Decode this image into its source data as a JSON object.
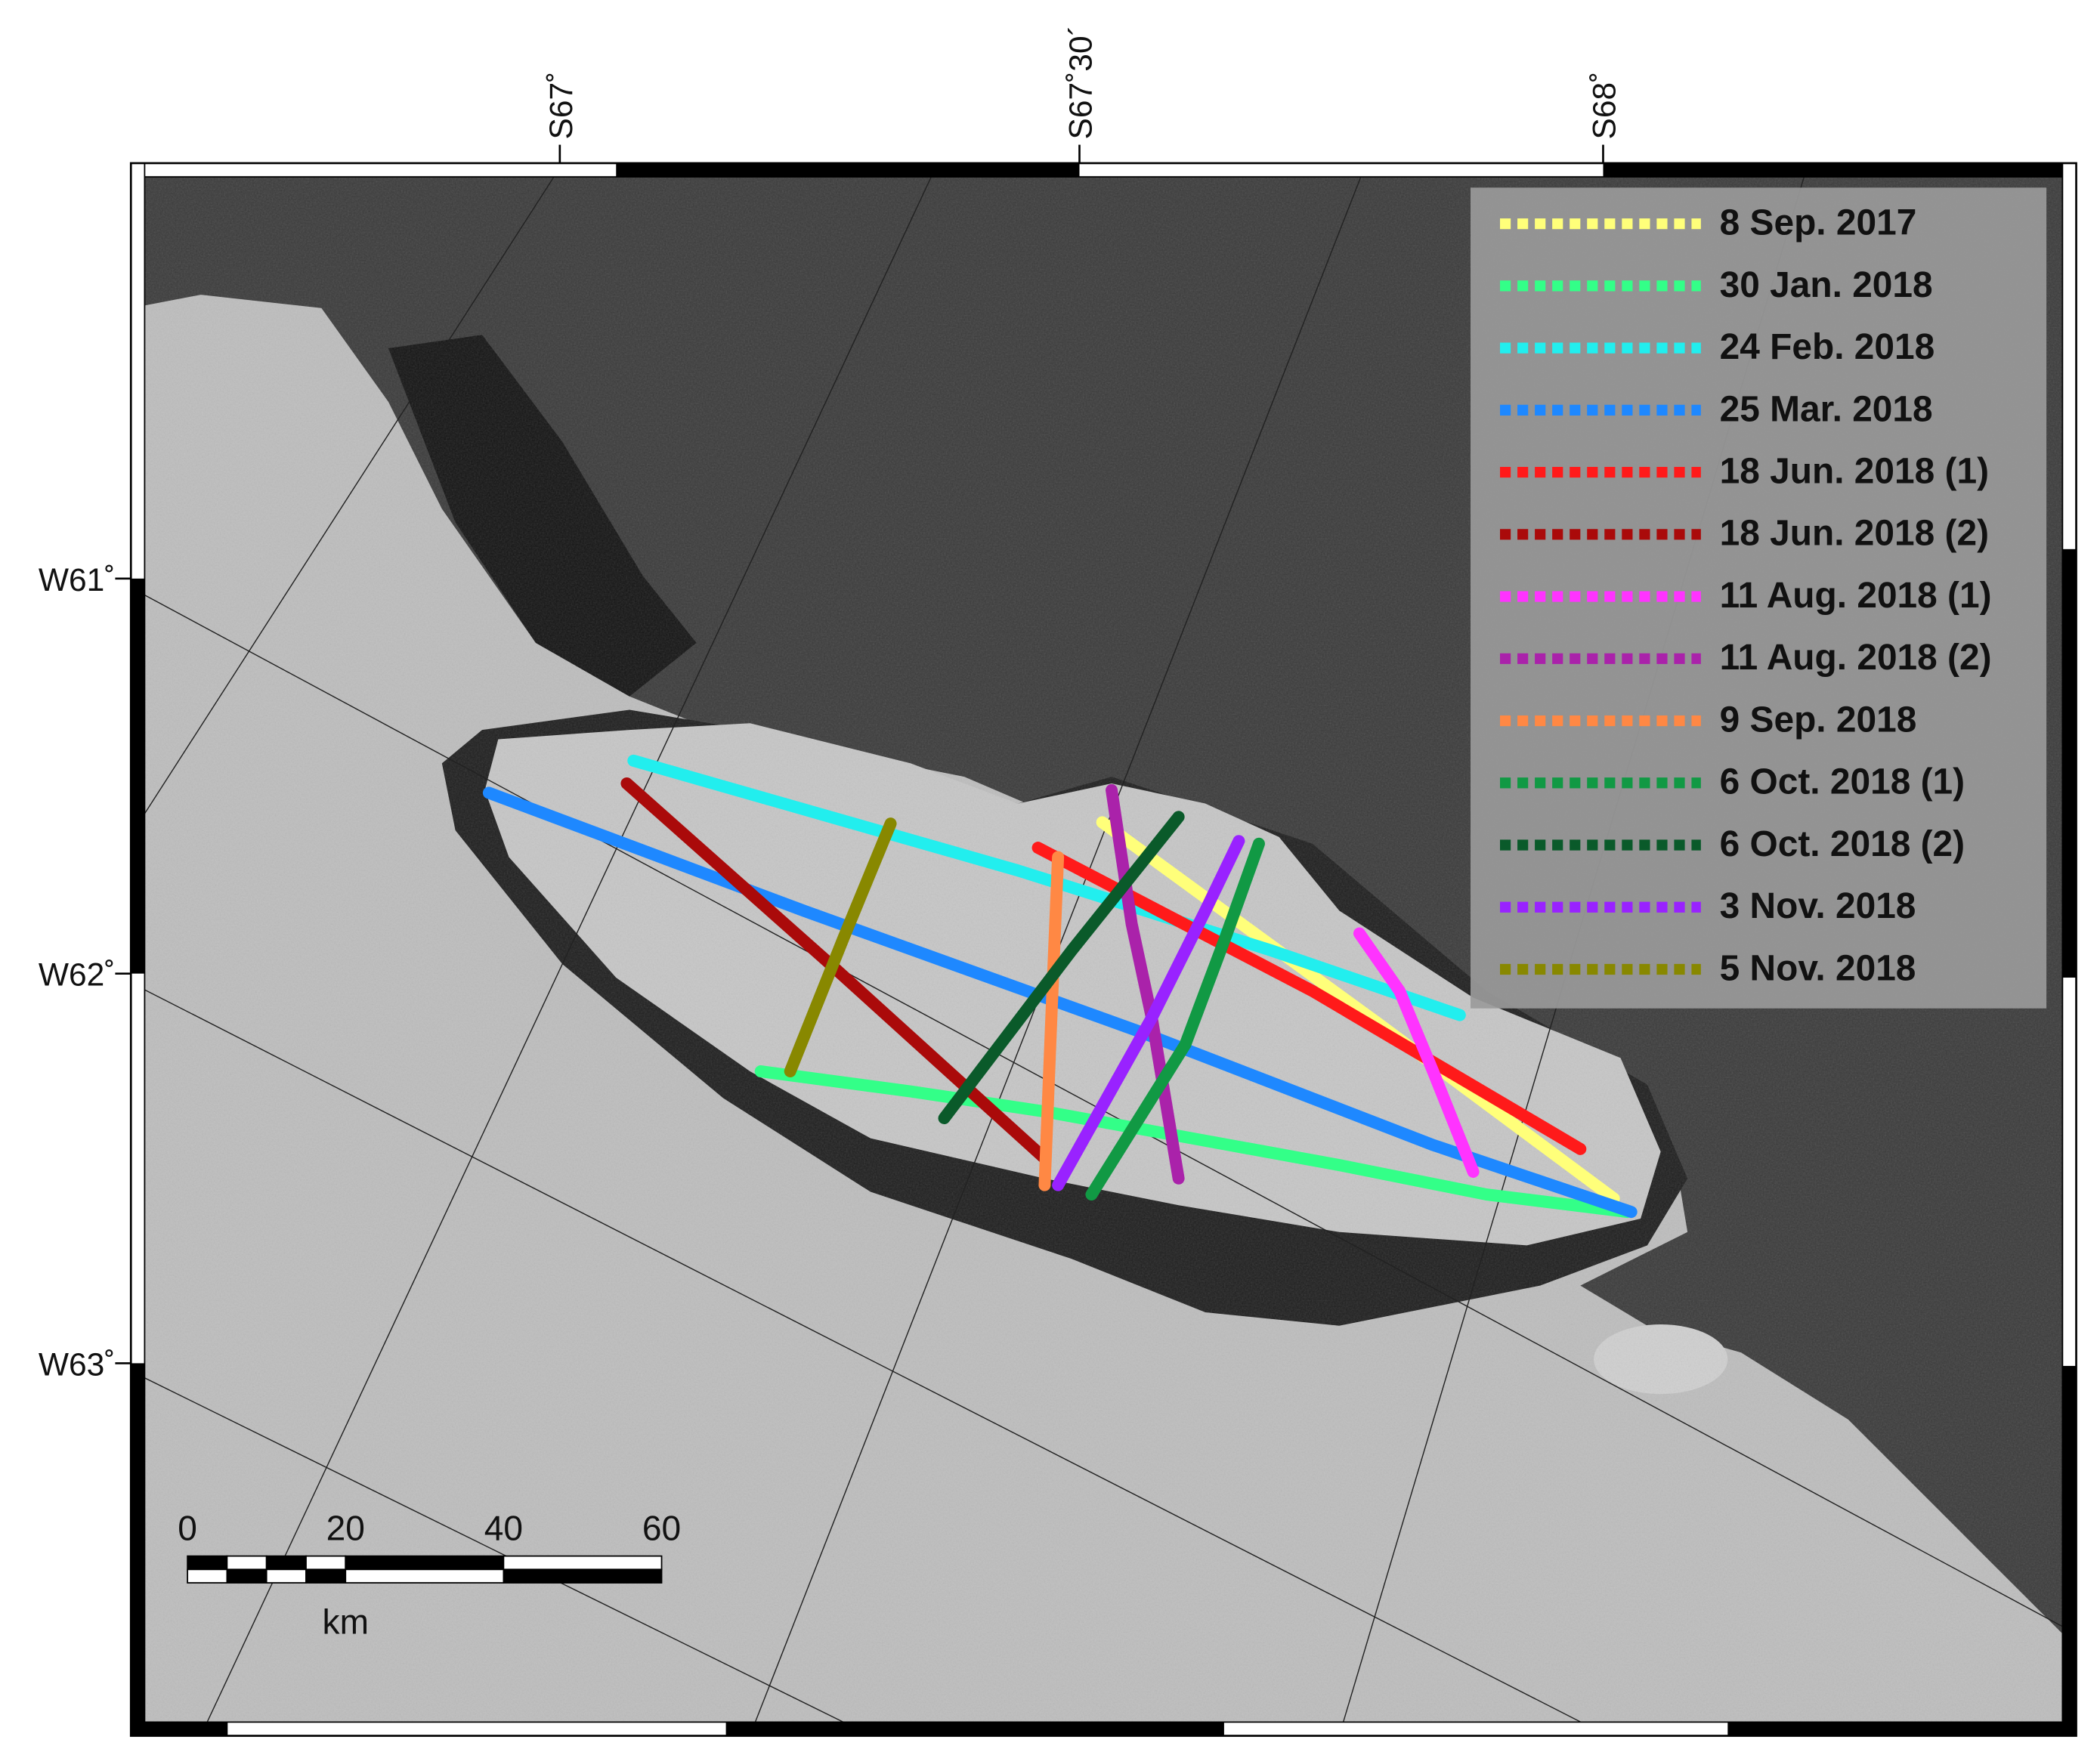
{
  "top_labels": [
    "S67˚",
    "S67˚30´",
    "S68˚"
  ],
  "left_labels": [
    "W61˚",
    "W62˚",
    "W63˚"
  ],
  "legend": [
    {
      "label": "8 Sep. 2017",
      "color": "#ffff7a"
    },
    {
      "label": "30 Jan. 2018",
      "color": "#33ff88"
    },
    {
      "label": "24 Feb. 2018",
      "color": "#22eeee"
    },
    {
      "label": "25 Mar. 2018",
      "color": "#1e88ff"
    },
    {
      "label": "18 Jun. 2018 (1)",
      "color": "#ff1a1a"
    },
    {
      "label": "18 Jun. 2018 (2)",
      "color": "#aa0a0a"
    },
    {
      "label": "11 Aug. 2018 (1)",
      "color": "#ff33ff"
    },
    {
      "label": "11 Aug. 2018 (2)",
      "color": "#aa22aa"
    },
    {
      "label": "9 Sep. 2018",
      "color": "#ff8844"
    },
    {
      "label": "6 Oct. 2018 (1)",
      "color": "#119944"
    },
    {
      "label": "6 Oct. 2018 (2)",
      "color": "#0a5a2a"
    },
    {
      "label": "3 Nov. 2018",
      "color": "#9922ff"
    },
    {
      "label": "5 Nov. 2018",
      "color": "#888800"
    }
  ],
  "scale_bar": {
    "ticks": [
      0,
      20,
      40,
      60
    ],
    "unit": "km"
  }
}
